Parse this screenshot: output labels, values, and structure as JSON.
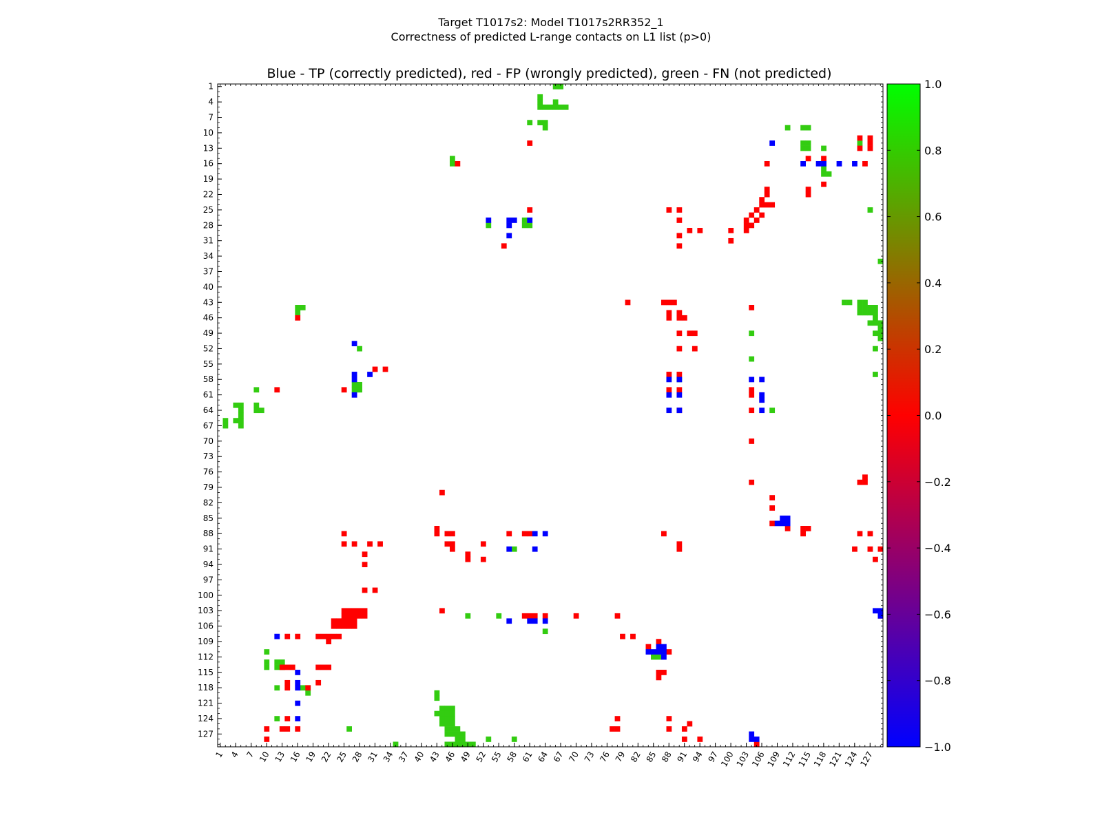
{
  "header": {
    "suptitle_line1": "Target T1017s2: Model T1017s2RR352_1",
    "suptitle_line2": "Correctness of predicted L-range contacts on L1 list (p>0)",
    "plot_title": "Blue - TP (correctly predicted), red - FP (wrongly predicted), green - FN (not predicted)"
  },
  "chart_data": {
    "type": "heatmap",
    "title": "Blue - TP (correctly predicted), red - FP (wrongly predicted), green - FN (not predicted)",
    "xlabel": "",
    "ylabel": "",
    "residue_range": [
      1,
      129
    ],
    "x_ticks": [
      1,
      4,
      7,
      10,
      13,
      16,
      19,
      22,
      25,
      28,
      31,
      34,
      37,
      40,
      43,
      46,
      49,
      52,
      55,
      58,
      61,
      64,
      67,
      70,
      73,
      76,
      79,
      82,
      85,
      88,
      91,
      94,
      97,
      100,
      103,
      106,
      109,
      112,
      115,
      118,
      121,
      124,
      127
    ],
    "y_ticks": [
      1,
      4,
      7,
      10,
      13,
      16,
      19,
      22,
      25,
      28,
      31,
      34,
      37,
      40,
      43,
      46,
      49,
      52,
      55,
      58,
      61,
      64,
      67,
      70,
      73,
      76,
      79,
      82,
      85,
      88,
      91,
      94,
      97,
      100,
      103,
      106,
      109,
      112,
      115,
      118,
      121,
      124,
      127
    ],
    "colorbar": {
      "min": -1.0,
      "max": 1.0,
      "ticks": [
        "1.0",
        "0.8",
        "0.6",
        "0.4",
        "0.2",
        "0.0",
        "−0.2",
        "−0.4",
        "−0.6",
        "−0.8",
        "−1.0"
      ],
      "tick_values": [
        1.0,
        0.8,
        0.6,
        0.4,
        0.2,
        0.0,
        -0.2,
        -0.4,
        -0.6,
        -0.8,
        -1.0
      ],
      "colors": {
        "low": "#0000ff",
        "mid": "#ff0000",
        "high": "#00ff00"
      }
    },
    "cell_colors": {
      "TP": "#0000ff",
      "FP": "#ff0000",
      "FN": "#33cc11"
    },
    "TP": [
      [
        53,
        27
      ],
      [
        57,
        27
      ],
      [
        58,
        27
      ],
      [
        61,
        27
      ],
      [
        57,
        28
      ],
      [
        57,
        30
      ],
      [
        27,
        51
      ],
      [
        27,
        57
      ],
      [
        27,
        58
      ],
      [
        30,
        57
      ],
      [
        27,
        61
      ],
      [
        88,
        58
      ],
      [
        90,
        58
      ],
      [
        88,
        61
      ],
      [
        90,
        61
      ],
      [
        88,
        64
      ],
      [
        90,
        64
      ],
      [
        108,
        12
      ],
      [
        114,
        16
      ],
      [
        117,
        16
      ],
      [
        118,
        16
      ],
      [
        121,
        16
      ],
      [
        124,
        16
      ],
      [
        104,
        58
      ],
      [
        106,
        58
      ],
      [
        106,
        61
      ],
      [
        106,
        62
      ],
      [
        106,
        64
      ],
      [
        110,
        85
      ],
      [
        111,
        85
      ],
      [
        109,
        86
      ],
      [
        110,
        86
      ],
      [
        111,
        86
      ],
      [
        62,
        88
      ],
      [
        64,
        88
      ],
      [
        57,
        91
      ],
      [
        62,
        91
      ],
      [
        57,
        105
      ],
      [
        61,
        105
      ],
      [
        62,
        105
      ],
      [
        64,
        105
      ],
      [
        86,
        110
      ],
      [
        87,
        110
      ],
      [
        84,
        111
      ],
      [
        85,
        111
      ],
      [
        86,
        111
      ],
      [
        87,
        111
      ],
      [
        87,
        112
      ],
      [
        12,
        108
      ],
      [
        16,
        115
      ],
      [
        16,
        117
      ],
      [
        16,
        118
      ],
      [
        16,
        121
      ],
      [
        16,
        124
      ],
      [
        128,
        103
      ],
      [
        129,
        103
      ],
      [
        129,
        104
      ],
      [
        104,
        127
      ],
      [
        104,
        128
      ],
      [
        105,
        128
      ]
    ],
    "FP": [
      [
        47,
        16
      ],
      [
        61,
        12
      ],
      [
        61,
        25
      ],
      [
        88,
        25
      ],
      [
        90,
        25
      ],
      [
        90,
        27
      ],
      [
        90,
        30
      ],
      [
        92,
        29
      ],
      [
        94,
        29
      ],
      [
        100,
        29
      ],
      [
        90,
        32
      ],
      [
        100,
        31
      ],
      [
        56,
        32
      ],
      [
        107,
        16
      ],
      [
        107,
        21
      ],
      [
        107,
        22
      ],
      [
        106,
        23
      ],
      [
        106,
        24
      ],
      [
        107,
        24
      ],
      [
        108,
        24
      ],
      [
        105,
        25
      ],
      [
        104,
        26
      ],
      [
        106,
        26
      ],
      [
        103,
        27
      ],
      [
        105,
        27
      ],
      [
        103,
        28
      ],
      [
        104,
        28
      ],
      [
        103,
        29
      ],
      [
        115,
        15
      ],
      [
        115,
        21
      ],
      [
        115,
        22
      ],
      [
        118,
        15
      ],
      [
        118,
        20
      ],
      [
        125,
        11
      ],
      [
        127,
        11
      ],
      [
        127,
        12
      ],
      [
        127,
        13
      ],
      [
        126,
        16
      ],
      [
        125,
        13
      ],
      [
        80,
        43
      ],
      [
        87,
        43
      ],
      [
        88,
        43
      ],
      [
        89,
        43
      ],
      [
        104,
        44
      ],
      [
        88,
        45
      ],
      [
        88,
        46
      ],
      [
        90,
        45
      ],
      [
        90,
        46
      ],
      [
        91,
        46
      ],
      [
        90,
        49
      ],
      [
        92,
        49
      ],
      [
        93,
        49
      ],
      [
        90,
        52
      ],
      [
        93,
        52
      ],
      [
        88,
        57
      ],
      [
        90,
        57
      ],
      [
        88,
        60
      ],
      [
        90,
        60
      ],
      [
        90,
        64
      ],
      [
        104,
        60
      ],
      [
        104,
        61
      ],
      [
        104,
        64
      ],
      [
        104,
        70
      ],
      [
        104,
        78
      ],
      [
        108,
        81
      ],
      [
        108,
        83
      ],
      [
        108,
        86
      ],
      [
        111,
        87
      ],
      [
        114,
        87
      ],
      [
        115,
        87
      ],
      [
        114,
        88
      ],
      [
        125,
        78
      ],
      [
        126,
        77
      ],
      [
        126,
        78
      ],
      [
        125,
        88
      ],
      [
        127,
        88
      ],
      [
        124,
        91
      ],
      [
        127,
        91
      ],
      [
        129,
        91
      ],
      [
        128,
        93
      ],
      [
        16,
        46
      ],
      [
        12,
        60
      ],
      [
        25,
        60
      ],
      [
        31,
        56
      ],
      [
        33,
        56
      ],
      [
        44,
        80
      ],
      [
        43,
        87
      ],
      [
        43,
        88
      ],
      [
        45,
        88
      ],
      [
        46,
        88
      ],
      [
        45,
        90
      ],
      [
        46,
        90
      ],
      [
        46,
        91
      ],
      [
        49,
        92
      ],
      [
        49,
        93
      ],
      [
        52,
        93
      ],
      [
        52,
        90
      ],
      [
        57,
        88
      ],
      [
        60,
        88
      ],
      [
        61,
        88
      ],
      [
        25,
        88
      ],
      [
        25,
        90
      ],
      [
        27,
        90
      ],
      [
        30,
        90
      ],
      [
        32,
        90
      ],
      [
        29,
        92
      ],
      [
        29,
        94
      ],
      [
        29,
        99
      ],
      [
        31,
        99
      ],
      [
        44,
        103
      ],
      [
        60,
        104
      ],
      [
        61,
        104
      ],
      [
        62,
        104
      ],
      [
        64,
        104
      ],
      [
        70,
        104
      ],
      [
        78,
        104
      ],
      [
        87,
        88
      ],
      [
        90,
        90
      ],
      [
        90,
        91
      ],
      [
        25,
        103
      ],
      [
        26,
        103
      ],
      [
        27,
        103
      ],
      [
        28,
        103
      ],
      [
        29,
        103
      ],
      [
        25,
        104
      ],
      [
        26,
        104
      ],
      [
        27,
        104
      ],
      [
        28,
        104
      ],
      [
        29,
        104
      ],
      [
        23,
        105
      ],
      [
        24,
        105
      ],
      [
        25,
        105
      ],
      [
        26,
        105
      ],
      [
        27,
        105
      ],
      [
        23,
        106
      ],
      [
        24,
        106
      ],
      [
        25,
        106
      ],
      [
        26,
        106
      ],
      [
        27,
        106
      ],
      [
        20,
        108
      ],
      [
        21,
        108
      ],
      [
        22,
        108
      ],
      [
        23,
        108
      ],
      [
        24,
        108
      ],
      [
        22,
        109
      ],
      [
        14,
        108
      ],
      [
        16,
        108
      ],
      [
        79,
        108
      ],
      [
        81,
        108
      ],
      [
        86,
        109
      ],
      [
        84,
        110
      ],
      [
        88,
        111
      ],
      [
        86,
        115
      ],
      [
        87,
        115
      ],
      [
        86,
        116
      ],
      [
        13,
        114
      ],
      [
        14,
        114
      ],
      [
        15,
        114
      ],
      [
        20,
        114
      ],
      [
        21,
        114
      ],
      [
        22,
        114
      ],
      [
        14,
        117
      ],
      [
        20,
        117
      ],
      [
        14,
        118
      ],
      [
        18,
        118
      ],
      [
        10,
        126
      ],
      [
        13,
        126
      ],
      [
        14,
        126
      ],
      [
        16,
        126
      ],
      [
        10,
        128
      ],
      [
        14,
        124
      ],
      [
        78,
        124
      ],
      [
        88,
        124
      ],
      [
        78,
        126
      ],
      [
        77,
        126
      ],
      [
        88,
        126
      ],
      [
        91,
        126
      ],
      [
        92,
        125
      ],
      [
        91,
        128
      ],
      [
        94,
        128
      ],
      [
        129,
        104
      ],
      [
        105,
        129
      ]
    ],
    "FN": [
      [
        66,
        1
      ],
      [
        67,
        1
      ],
      [
        63,
        3
      ],
      [
        63,
        4
      ],
      [
        63,
        5
      ],
      [
        64,
        5
      ],
      [
        65,
        5
      ],
      [
        66,
        5
      ],
      [
        67,
        5
      ],
      [
        68,
        5
      ],
      [
        66,
        4
      ],
      [
        61,
        8
      ],
      [
        63,
        8
      ],
      [
        64,
        8
      ],
      [
        64,
        9
      ],
      [
        111,
        9
      ],
      [
        114,
        9
      ],
      [
        115,
        9
      ],
      [
        114,
        12
      ],
      [
        115,
        12
      ],
      [
        114,
        13
      ],
      [
        115,
        13
      ],
      [
        118,
        13
      ],
      [
        125,
        12
      ],
      [
        118,
        17
      ],
      [
        118,
        18
      ],
      [
        119,
        18
      ],
      [
        46,
        15
      ],
      [
        46,
        16
      ],
      [
        53,
        28
      ],
      [
        60,
        27
      ],
      [
        60,
        28
      ],
      [
        61,
        28
      ],
      [
        127,
        25
      ],
      [
        129,
        35
      ],
      [
        122,
        43
      ],
      [
        123,
        43
      ],
      [
        125,
        43
      ],
      [
        126,
        43
      ],
      [
        125,
        44
      ],
      [
        126,
        44
      ],
      [
        127,
        44
      ],
      [
        128,
        44
      ],
      [
        125,
        45
      ],
      [
        126,
        45
      ],
      [
        127,
        45
      ],
      [
        128,
        45
      ],
      [
        128,
        46
      ],
      [
        127,
        47
      ],
      [
        128,
        47
      ],
      [
        129,
        47
      ],
      [
        129,
        48
      ],
      [
        129,
        49
      ],
      [
        128,
        49
      ],
      [
        129,
        50
      ],
      [
        128,
        52
      ],
      [
        128,
        57
      ],
      [
        104,
        49
      ],
      [
        104,
        54
      ],
      [
        90,
        58
      ],
      [
        108,
        64
      ],
      [
        16,
        44
      ],
      [
        17,
        44
      ],
      [
        16,
        45
      ],
      [
        28,
        52
      ],
      [
        27,
        59
      ],
      [
        28,
        59
      ],
      [
        27,
        60
      ],
      [
        28,
        60
      ],
      [
        8,
        60
      ],
      [
        4,
        63
      ],
      [
        5,
        63
      ],
      [
        8,
        63
      ],
      [
        5,
        64
      ],
      [
        8,
        64
      ],
      [
        9,
        64
      ],
      [
        5,
        65
      ],
      [
        5,
        66
      ],
      [
        4,
        66
      ],
      [
        2,
        66
      ],
      [
        2,
        67
      ],
      [
        5,
        67
      ],
      [
        43,
        119
      ],
      [
        43,
        120
      ],
      [
        43,
        123
      ],
      [
        44,
        122
      ],
      [
        45,
        122
      ],
      [
        46,
        122
      ],
      [
        44,
        123
      ],
      [
        45,
        123
      ],
      [
        46,
        123
      ],
      [
        44,
        124
      ],
      [
        45,
        124
      ],
      [
        46,
        124
      ],
      [
        44,
        125
      ],
      [
        45,
        125
      ],
      [
        46,
        125
      ],
      [
        45,
        126
      ],
      [
        46,
        126
      ],
      [
        47,
        126
      ],
      [
        45,
        127
      ],
      [
        46,
        127
      ],
      [
        47,
        127
      ],
      [
        48,
        127
      ],
      [
        47,
        128
      ],
      [
        47,
        129
      ],
      [
        45,
        129
      ],
      [
        46,
        129
      ],
      [
        48,
        129
      ],
      [
        49,
        129
      ],
      [
        50,
        129
      ],
      [
        48,
        128
      ],
      [
        53,
        128
      ],
      [
        58,
        128
      ],
      [
        35,
        129
      ],
      [
        26,
        126
      ],
      [
        49,
        104
      ],
      [
        55,
        104
      ],
      [
        58,
        91
      ],
      [
        64,
        107
      ],
      [
        10,
        111
      ],
      [
        10,
        113
      ],
      [
        10,
        114
      ],
      [
        12,
        113
      ],
      [
        13,
        113
      ],
      [
        12,
        114
      ],
      [
        13,
        114
      ],
      [
        12,
        118
      ],
      [
        17,
        118
      ],
      [
        18,
        118
      ],
      [
        18,
        119
      ],
      [
        12,
        124
      ],
      [
        85,
        112
      ],
      [
        86,
        112
      ]
    ]
  }
}
